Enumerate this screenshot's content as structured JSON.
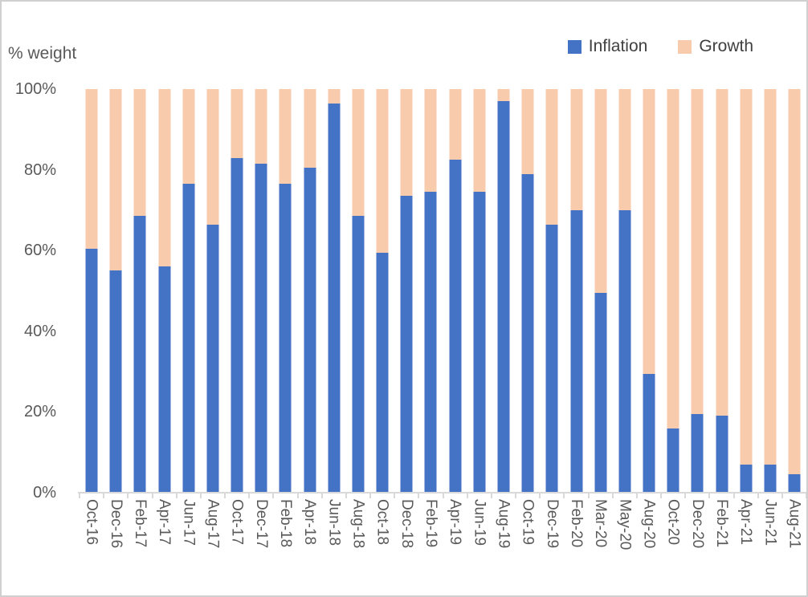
{
  "colors": {
    "inflation": "#4472C4",
    "growth": "#F8CBAD",
    "axis_line": "#D9D9D9",
    "axis_text": "#595959",
    "legend_text": "#404040",
    "frame_border": "#D0D0D0"
  },
  "chart_data": {
    "type": "bar",
    "stacked": true,
    "title": "",
    "ylabel": "% weight",
    "xlabel": "",
    "legend_position": "top-right",
    "grid": false,
    "ylim": [
      0,
      100
    ],
    "y_tick_labels": [
      "0%",
      "20%",
      "40%",
      "60%",
      "80%",
      "100%"
    ],
    "y_tick_values": [
      0,
      20,
      40,
      60,
      80,
      100
    ],
    "categories": [
      "Oct-16",
      "Dec-16",
      "Feb-17",
      "Apr-17",
      "Jun-17",
      "Aug-17",
      "Oct-17",
      "Dec-17",
      "Feb-18",
      "Apr-18",
      "Jun-18",
      "Aug-18",
      "Oct-18",
      "Dec-18",
      "Feb-19",
      "Apr-19",
      "Jun-19",
      "Aug-19",
      "Oct-19",
      "Dec-19",
      "Feb-20",
      "Mar-20",
      "May-20",
      "Aug-20",
      "Oct-20",
      "Dec-20",
      "Feb-21",
      "Apr-21",
      "Jun-21",
      "Aug-21"
    ],
    "series": [
      {
        "name": "Inflation",
        "color": "#4472C4",
        "values": [
          60.5,
          55,
          68.5,
          56,
          76.5,
          66.5,
          83,
          81.5,
          76.5,
          80.5,
          96.5,
          68.5,
          59.5,
          73.5,
          74.5,
          82.5,
          74.5,
          97,
          79,
          66.5,
          70,
          49.5,
          70,
          29.5,
          16,
          19.5,
          19,
          7,
          7,
          4.5
        ]
      },
      {
        "name": "Growth",
        "color": "#F8CBAD",
        "values": [
          39.5,
          45,
          31.5,
          44,
          23.5,
          33.5,
          17,
          18.5,
          23.5,
          19.5,
          3.5,
          31.5,
          40.5,
          26.5,
          25.5,
          17.5,
          25.5,
          3,
          21,
          33.5,
          30,
          50.5,
          30,
          70.5,
          84,
          80.5,
          81,
          93,
          93,
          95.5
        ]
      }
    ]
  }
}
